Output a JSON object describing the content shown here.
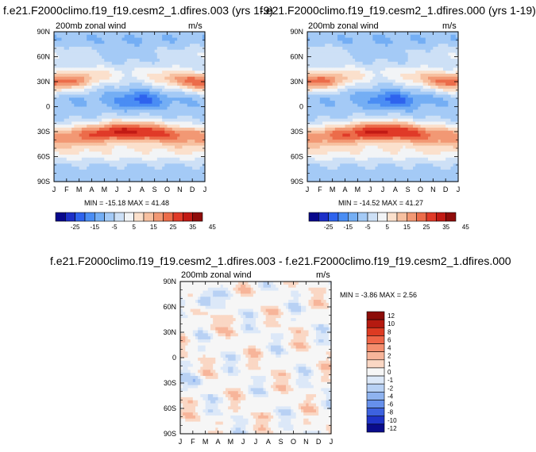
{
  "panels": [
    {
      "title": "f.e21.F2000climo.f19_f19.cesm2_1.dfires.003 (yrs 1-9)",
      "variable": "200mb zonal wind",
      "units": "m/s",
      "minmax": "MIN = -15.18 MAX = 41.48"
    },
    {
      "title": "f.e21.F2000climo.f19_f19.cesm2_1.dfires.000 (yrs 1-19)",
      "variable": "200mb zonal wind",
      "units": "m/s",
      "minmax": "MIN = -14.52 MAX = 41.27"
    },
    {
      "title": "f.e21.F2000climo.f19_f19.cesm2_1.dfires.003 - f.e21.F2000climo.f19_f19.cesm2_1.dfires.000",
      "variable": "200mb zonal wind",
      "units": "m/s",
      "minmax": "MIN =  -3.86 MAX =   2.56"
    }
  ],
  "chart_data": [
    {
      "type": "heatmap",
      "title": "f.e21.F2000climo.f19_f19.cesm2_1.dfires.003 (yrs 1-9)",
      "subtitle": "200mb zonal wind",
      "units": "m/s",
      "x_tick_labels": [
        "J",
        "F",
        "M",
        "A",
        "M",
        "J",
        "J",
        "A",
        "S",
        "O",
        "N",
        "D",
        "J"
      ],
      "y_tick_labels": [
        "90N",
        "60N",
        "30N",
        "0",
        "30S",
        "60S",
        "90S"
      ],
      "ylim": [
        -90,
        90
      ],
      "min": -15.18,
      "max": 41.48,
      "colorbar_labels": [
        "-25",
        "-15",
        "-5",
        "5",
        "15",
        "25",
        "35",
        "45"
      ]
    },
    {
      "type": "heatmap",
      "title": "f.e21.F2000climo.f19_f19.cesm2_1.dfires.000 (yrs 1-19)",
      "subtitle": "200mb zonal wind",
      "units": "m/s",
      "x_tick_labels": [
        "J",
        "F",
        "M",
        "A",
        "M",
        "J",
        "J",
        "A",
        "S",
        "O",
        "N",
        "D",
        "J"
      ],
      "y_tick_labels": [
        "90N",
        "60N",
        "30N",
        "0",
        "30S",
        "60S",
        "90S"
      ],
      "ylim": [
        -90,
        90
      ],
      "min": -14.52,
      "max": 41.27,
      "colorbar_labels": [
        "-25",
        "-15",
        "-5",
        "5",
        "15",
        "25",
        "35",
        "45"
      ]
    },
    {
      "type": "heatmap",
      "title": "f.e21.F2000climo.f19_f19.cesm2_1.dfires.003 - f.e21.F2000climo.f19_f19.cesm2_1.dfires.000",
      "subtitle": "200mb zonal wind",
      "units": "m/s",
      "x_tick_labels": [
        "J",
        "F",
        "M",
        "A",
        "M",
        "J",
        "J",
        "A",
        "S",
        "O",
        "N",
        "D",
        "J"
      ],
      "y_tick_labels": [
        "90N",
        "60N",
        "30N",
        "0",
        "30S",
        "60S",
        "90S"
      ],
      "ylim": [
        -90,
        90
      ],
      "min": -3.86,
      "max": 2.56,
      "colorbar_labels": [
        "12",
        "10",
        "8",
        "6",
        "4",
        "2",
        "1",
        "0",
        "-1",
        "-2",
        "-4",
        "-6",
        "-8",
        "-10",
        "-12"
      ]
    }
  ],
  "colors": {
    "field_scale": [
      "#08088c",
      "#1c2fc8",
      "#2e63ee",
      "#4a8df4",
      "#74aef4",
      "#a4caf6",
      "#cde0f6",
      "#f2f4f6",
      "#fbe0cc",
      "#f7c0a0",
      "#f29874",
      "#ec6c4a",
      "#e03a28",
      "#c21a14",
      "#8f0c0a"
    ],
    "diff_scale": [
      "#8c0d08",
      "#b51a10",
      "#dd3b22",
      "#ef6547",
      "#f48e6e",
      "#f7b59a",
      "#fad7c4",
      "#f6f6f6",
      "#dce8f8",
      "#b8d1f4",
      "#8fb3ef",
      "#6690eb",
      "#3d62df",
      "#1f34c8",
      "#0a0c8c"
    ]
  }
}
